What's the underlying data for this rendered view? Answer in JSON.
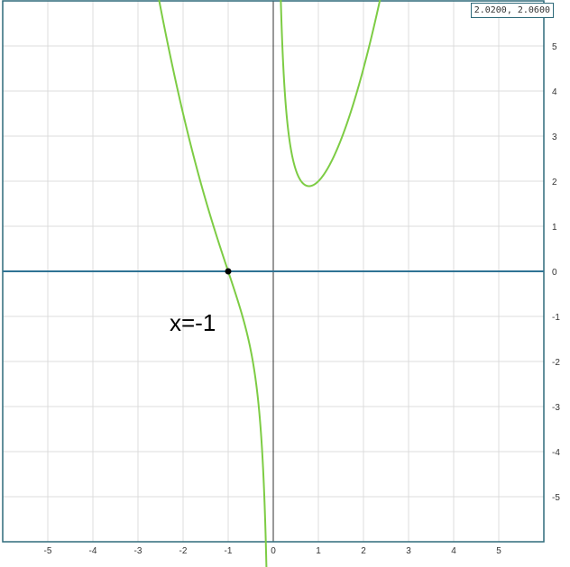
{
  "chart_data": {
    "type": "line",
    "function": "y = x^2 + 1/x",
    "xlim": [
      -6,
      6
    ],
    "ylim": [
      -6,
      6
    ],
    "grid": true,
    "x_ticks": [
      "-5",
      "-4",
      "-3",
      "-2",
      "-1",
      "0",
      "1",
      "2",
      "3",
      "4",
      "5"
    ],
    "y_ticks": [
      "5",
      "4",
      "3",
      "2",
      "1",
      "0",
      "-1",
      "-2",
      "-3",
      "-4",
      "-5"
    ],
    "series": [
      {
        "color": "#7dcc44"
      }
    ],
    "horizontal_line": {
      "y": 0,
      "color": "#2f7394"
    },
    "point": {
      "x": -1,
      "y": 0
    },
    "annotation": "x=-1"
  },
  "coord_readout": "2.0200, 2.0600"
}
